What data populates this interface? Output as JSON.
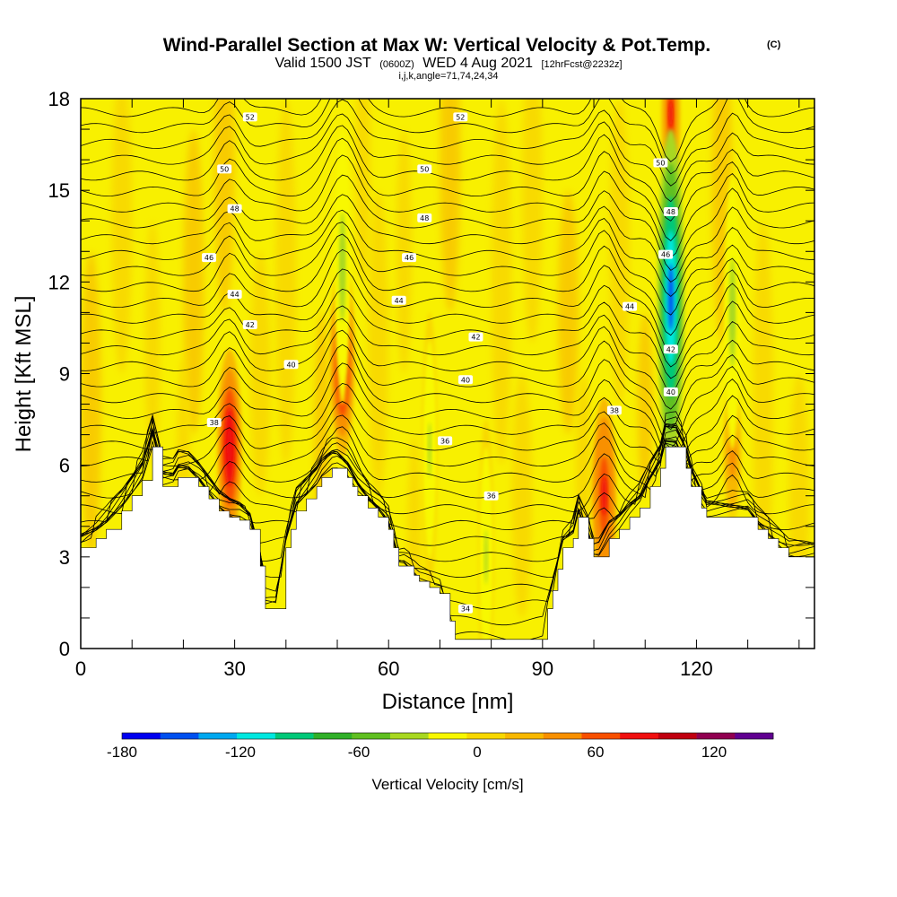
{
  "title": {
    "main": "Wind-Parallel Section at Max W: Vertical Velocity & Pot.Temp.",
    "copyright": "(C)",
    "valid_prefix": "Valid 1500 JST",
    "valid_utc": "(0600Z)",
    "valid_date": "WED 4 Aug 2021",
    "forecast": "[12hrFcst@2232z]",
    "indices": "i,j,k,angle=71,74,24,34"
  },
  "chart_data": {
    "type": "heatmap",
    "xlabel": "Distance [nm]",
    "ylabel": "Height [Kft MSL]",
    "xlim": [
      0,
      143
    ],
    "ylim": [
      0,
      18
    ],
    "x_ticks": [
      "0",
      "30",
      "60",
      "90",
      "120"
    ],
    "x_tick_values": [
      0,
      30,
      60,
      90,
      120
    ],
    "y_ticks": [
      "0",
      "3",
      "6",
      "9",
      "12",
      "15",
      "18"
    ],
    "y_tick_values": [
      0,
      3,
      6,
      9,
      12,
      15,
      18
    ],
    "colorbar": {
      "title": "Vertical Velocity [cm/s]",
      "labels": [
        "-180",
        "-120",
        "-60",
        "0",
        "60",
        "120"
      ],
      "label_values": [
        -180,
        -120,
        -60,
        0,
        60,
        120
      ],
      "colors": [
        "#0000f0",
        "#0050f0",
        "#00a8f0",
        "#00e8e0",
        "#00c878",
        "#30b028",
        "#60c020",
        "#a8d820",
        "#f8f800",
        "#f8d800",
        "#f8b800",
        "#f89000",
        "#f85000",
        "#f01010",
        "#c00010",
        "#900050",
        "#600090"
      ],
      "range": [
        -180,
        150
      ]
    },
    "terrain": {
      "x": [
        0,
        3,
        5,
        8,
        10,
        12,
        14,
        16,
        18,
        19,
        21,
        23,
        25,
        27,
        29,
        31,
        33,
        35,
        36,
        38,
        40,
        41,
        42,
        44,
        46,
        47,
        49,
        50,
        52,
        53,
        54,
        56,
        58,
        60,
        61,
        62,
        63,
        65,
        66,
        68,
        70,
        72,
        73,
        74,
        76,
        78,
        80,
        82,
        84,
        86,
        88,
        90,
        91,
        92,
        93,
        94,
        96,
        97,
        99,
        100,
        101,
        103,
        105,
        107,
        109,
        111,
        113,
        114,
        115,
        116,
        118,
        119,
        121,
        122,
        124,
        126,
        128,
        130,
        132,
        134,
        136,
        138,
        140,
        143
      ],
      "heights": [
        3.3,
        3.6,
        3.9,
        4.5,
        5.0,
        5.5,
        6.6,
        5.3,
        5.3,
        5.6,
        5.6,
        5.3,
        4.9,
        4.5,
        4.3,
        4.2,
        3.9,
        2.7,
        1.3,
        1.3,
        3.3,
        3.9,
        4.5,
        4.9,
        5.3,
        5.6,
        5.9,
        5.9,
        5.6,
        5.3,
        5.0,
        4.6,
        4.3,
        3.9,
        3.3,
        2.7,
        2.7,
        2.4,
        2.2,
        2.0,
        1.8,
        0.9,
        0.3,
        0.3,
        0.3,
        0.3,
        0.3,
        0.3,
        0.3,
        0.3,
        0.3,
        0.3,
        1.3,
        1.9,
        2.6,
        3.3,
        3.6,
        4.3,
        3.6,
        3.0,
        3.0,
        3.6,
        3.9,
        4.3,
        4.6,
        5.3,
        5.9,
        6.6,
        6.6,
        6.6,
        5.9,
        5.3,
        4.6,
        4.3,
        4.3,
        4.3,
        4.3,
        4.3,
        3.9,
        3.6,
        3.3,
        3.0,
        3.0,
        3.0
      ]
    },
    "updrafts": [
      {
        "x": 29,
        "y": 6.6,
        "value": 110
      },
      {
        "x": 51,
        "y": 9.5,
        "value": 125
      },
      {
        "x": 102,
        "y": 5.0,
        "value": 105
      },
      {
        "x": 115,
        "y": 17.5,
        "value": 100
      },
      {
        "x": 127,
        "y": 6.5,
        "value": 60
      }
    ],
    "downdrafts": [
      {
        "x": 115,
        "y": 11.5,
        "value": -180
      },
      {
        "x": 51,
        "y": 12.5,
        "value": -45
      },
      {
        "x": 127,
        "y": 11.0,
        "value": -50
      },
      {
        "x": 68,
        "y": 6.5,
        "value": -30
      },
      {
        "x": 79,
        "y": 3.0,
        "value": -30
      }
    ],
    "theta_contours": {
      "levels": [
        34,
        36,
        38,
        40,
        42,
        44,
        46,
        48,
        50,
        52
      ],
      "labels": [
        {
          "text": "52",
          "x": 33,
          "y": 17.4
        },
        {
          "text": "52",
          "x": 74,
          "y": 17.4
        },
        {
          "text": "50",
          "x": 28,
          "y": 15.7
        },
        {
          "text": "50",
          "x": 67,
          "y": 15.7
        },
        {
          "text": "50",
          "x": 113,
          "y": 15.9
        },
        {
          "text": "48",
          "x": 30,
          "y": 14.4
        },
        {
          "text": "48",
          "x": 67,
          "y": 14.1
        },
        {
          "text": "48",
          "x": 115,
          "y": 14.3
        },
        {
          "text": "46",
          "x": 25,
          "y": 12.8
        },
        {
          "text": "46",
          "x": 64,
          "y": 12.8
        },
        {
          "text": "46",
          "x": 114,
          "y": 12.9
        },
        {
          "text": "44",
          "x": 30,
          "y": 11.6
        },
        {
          "text": "44",
          "x": 62,
          "y": 11.4
        },
        {
          "text": "44",
          "x": 107,
          "y": 11.2
        },
        {
          "text": "42",
          "x": 33,
          "y": 10.6
        },
        {
          "text": "42",
          "x": 77,
          "y": 10.2
        },
        {
          "text": "42",
          "x": 115,
          "y": 9.8
        },
        {
          "text": "40",
          "x": 41,
          "y": 9.3
        },
        {
          "text": "40",
          "x": 75,
          "y": 8.8
        },
        {
          "text": "40",
          "x": 115,
          "y": 8.4
        },
        {
          "text": "38",
          "x": 26,
          "y": 7.4
        },
        {
          "text": "38",
          "x": 104,
          "y": 7.8
        },
        {
          "text": "36",
          "x": 71,
          "y": 6.8
        },
        {
          "text": "36",
          "x": 80,
          "y": 5.0
        },
        {
          "text": "34",
          "x": 75,
          "y": 1.3
        }
      ]
    },
    "grid": false
  }
}
